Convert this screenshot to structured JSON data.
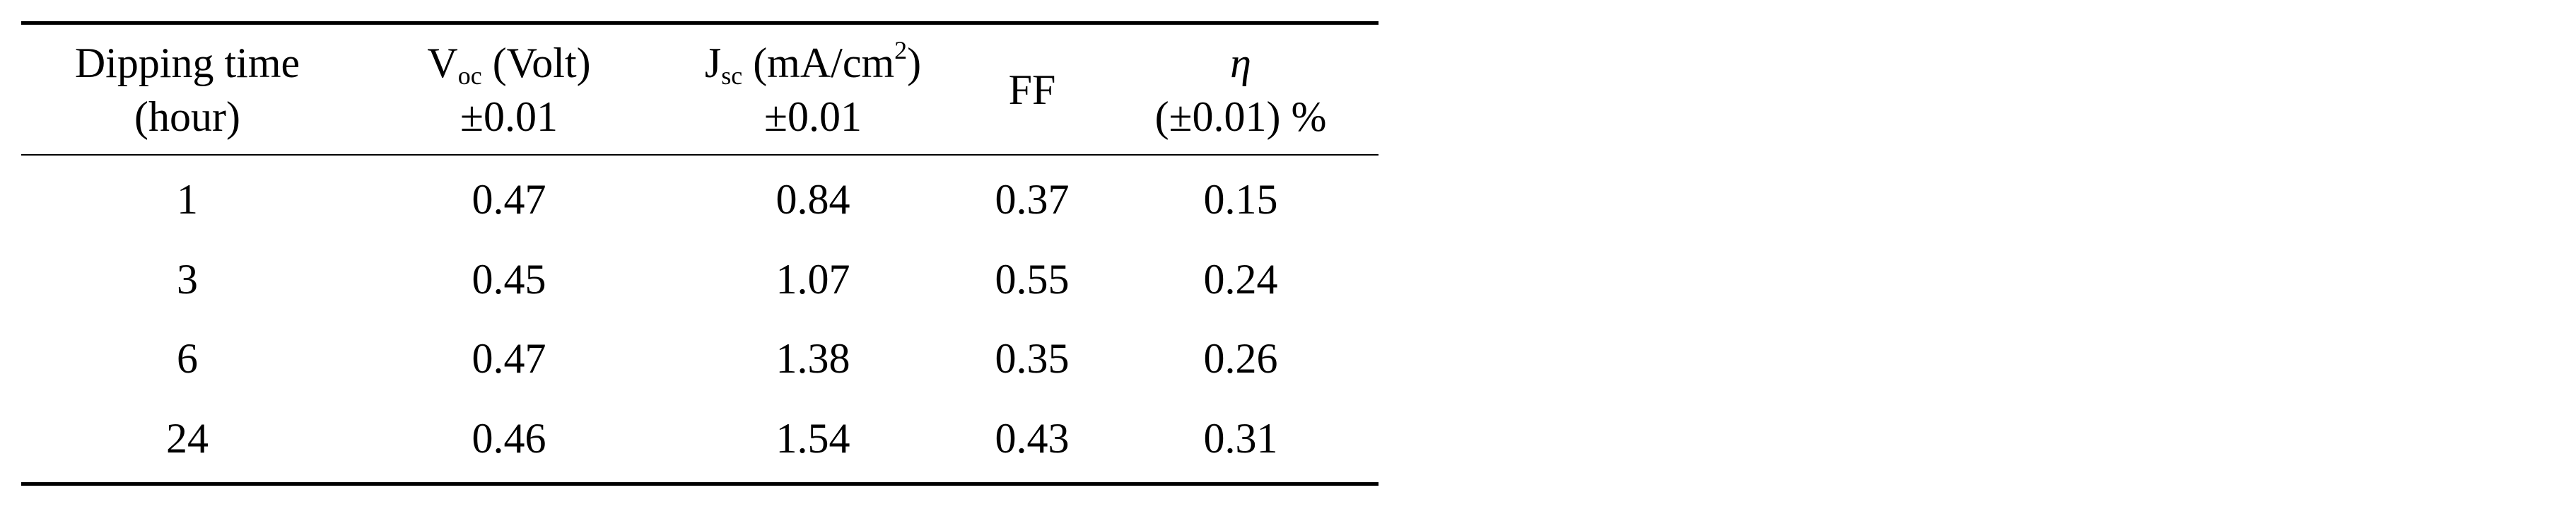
{
  "table": {
    "header": {
      "dipping_time": {
        "line1": "Dipping time",
        "line2": "(hour)"
      },
      "voc": {
        "main": "V",
        "sub": "oc",
        "rest": " (Volt)",
        "line2": "±0.01"
      },
      "jsc": {
        "main": "J",
        "sub": "sc",
        "rest": " (mA/cm",
        "sup": "2",
        "close": ")",
        "line2": "±0.01"
      },
      "ff": {
        "label": "FF"
      },
      "eta": {
        "symbol": "η",
        "line2": "(±0.01) %"
      }
    },
    "rows": [
      {
        "dipping_time": "1",
        "voc": "0.47",
        "jsc": "0.84",
        "ff": "0.37",
        "eta": "0.15"
      },
      {
        "dipping_time": "3",
        "voc": "0.45",
        "jsc": "1.07",
        "ff": "0.55",
        "eta": "0.24"
      },
      {
        "dipping_time": "6",
        "voc": "0.47",
        "jsc": "1.38",
        "ff": "0.35",
        "eta": "0.26"
      },
      {
        "dipping_time": "24",
        "voc": "0.46",
        "jsc": "1.54",
        "ff": "0.43",
        "eta": "0.31"
      }
    ]
  }
}
